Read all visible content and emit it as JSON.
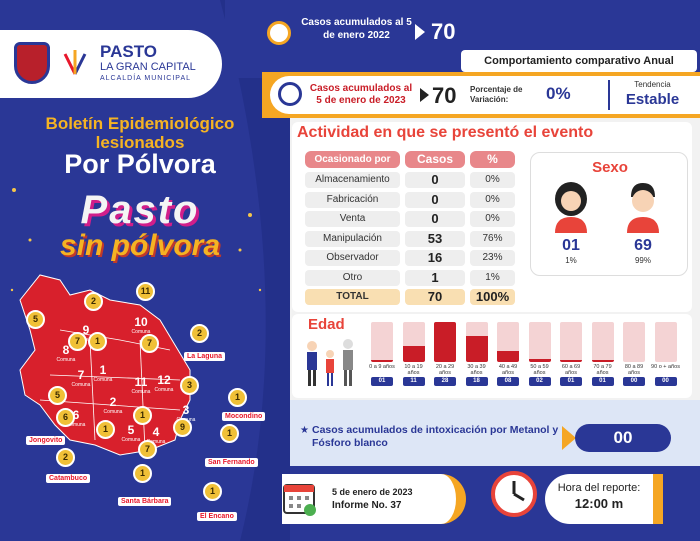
{
  "header": {
    "brand_name": "PASTO",
    "brand_sub": "LA GRAN CAPITAL",
    "brand_sub2": "ALCALDÍA MUNICIPAL",
    "bulletin_line1": "Boletín Epidemiológico",
    "bulletin_line2": "lesionados",
    "bulletin_line3": "Por Pólvora",
    "campaign_line1": "Pasto",
    "campaign_line2": "sin pólvora"
  },
  "stats": {
    "prev_label": "Casos acumulados al 5 de enero 2022",
    "prev_value": "70",
    "comparison_title": "Comportamiento comparativo Anual",
    "curr_label": "Casos acumulados al 5 de enero de 2023",
    "curr_value": "70",
    "variation_label": "Porcentaje de Variación:",
    "variation_value": "0%",
    "trend_label": "Tendencia",
    "trend_value": "Estable"
  },
  "activity": {
    "title": "Actividad en que se presentó el evento",
    "col_caused": "Ocasionado por",
    "col_cases": "Casos",
    "col_pct": "%",
    "rows": [
      {
        "label": "Almacenamiento",
        "cases": "0",
        "pct": "0%"
      },
      {
        "label": "Fabricación",
        "cases": "0",
        "pct": "0%"
      },
      {
        "label": "Venta",
        "cases": "0",
        "pct": "0%"
      },
      {
        "label": "Manipulación",
        "cases": "53",
        "pct": "76%"
      },
      {
        "label": "Observador",
        "cases": "16",
        "pct": "23%"
      },
      {
        "label": "Otro",
        "cases": "1",
        "pct": "1%"
      }
    ],
    "total_label": "TOTAL",
    "total_cases": "70",
    "total_pct": "100%"
  },
  "sex": {
    "title": "Sexo",
    "female_count": "01",
    "female_pct": "1%",
    "male_count": "69",
    "male_pct": "99%"
  },
  "age": {
    "title": "Edad",
    "groups": [
      {
        "label": "0 a 9 años",
        "value": "01",
        "n": 1
      },
      {
        "label": "10 a 19 años",
        "value": "11",
        "n": 11
      },
      {
        "label": "20 a 29 años",
        "value": "28",
        "n": 28
      },
      {
        "label": "30 a 39 años",
        "value": "18",
        "n": 18
      },
      {
        "label": "40 a 49 años",
        "value": "08",
        "n": 8
      },
      {
        "label": "50 a 59 años",
        "value": "02",
        "n": 2
      },
      {
        "label": "60 a 69 años",
        "value": "01",
        "n": 1
      },
      {
        "label": "70 a 79 años",
        "value": "01",
        "n": 1
      },
      {
        "label": "80 a 89 años",
        "value": "00",
        "n": 0
      },
      {
        "label": "90 o + años",
        "value": "00",
        "n": 0
      }
    ],
    "max": 28
  },
  "intox": {
    "label": "Casos acumulados de intoxicación por Metanol y Fósforo blanco",
    "value": "00"
  },
  "footer": {
    "date": "5 de enero de 2023",
    "report": "Informe No. 37",
    "time_label": "Hora del reporte:",
    "time_value": "12:00 m"
  },
  "map": {
    "comunas": [
      {
        "num": "10",
        "label": "Comuna",
        "count": "11"
      },
      {
        "num": "9",
        "label": "Comuna",
        "count": "2"
      },
      {
        "num": "8",
        "label": "Comuna",
        "count": "5"
      },
      {
        "num": "7",
        "label": "Comuna",
        "count": "7"
      },
      {
        "num": "1",
        "label": "Comuna",
        "count": "1"
      },
      {
        "num": "11",
        "label": "Comuna",
        "count": "7"
      },
      {
        "num": "12",
        "label": "Comuna",
        "count": "3"
      },
      {
        "num": "2",
        "label": "Comuna",
        "count": "1"
      },
      {
        "num": "6",
        "label": "Comuna",
        "count": "5"
      },
      {
        "num": "5",
        "label": "Comuna",
        "count": "1"
      },
      {
        "num": "4",
        "label": "Comuna",
        "count": "7"
      },
      {
        "num": "3",
        "label": "Comuna",
        "count": "9"
      }
    ],
    "places": [
      {
        "name": "La Laguna",
        "count": "2"
      },
      {
        "name": "Mocondino",
        "count": "1"
      },
      {
        "name": "Jongovito",
        "count": "6"
      },
      {
        "name": "San Fernando",
        "count": "1"
      },
      {
        "name": "Catambuco",
        "count": "2"
      },
      {
        "name": "Santa Bárbara",
        "count": "1"
      },
      {
        "name": "El Encano",
        "count": "1"
      }
    ]
  },
  "colors": {
    "navy": "#2a3796",
    "orange": "#f5a623",
    "red": "#c91d27",
    "pink": "#e8878a"
  }
}
